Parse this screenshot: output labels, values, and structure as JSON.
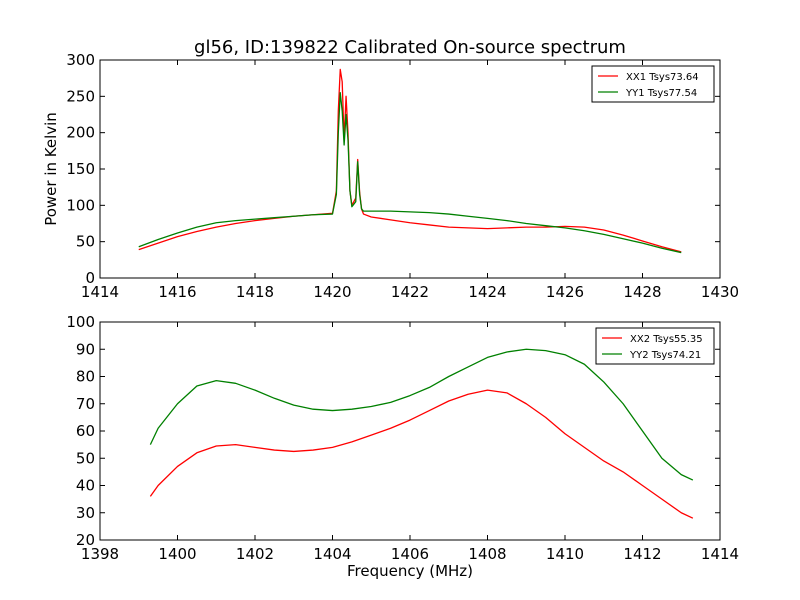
{
  "title": "gl56, ID:139822 Calibrated On-source spectrum",
  "chart_data": [
    {
      "type": "line",
      "ylabel": "Power in Kelvin",
      "xlabel": "",
      "xlim": [
        1414,
        1430
      ],
      "ylim": [
        0,
        300
      ],
      "xticks": [
        1414,
        1416,
        1418,
        1420,
        1422,
        1424,
        1426,
        1428,
        1430
      ],
      "yticks": [
        0,
        50,
        100,
        150,
        200,
        250,
        300
      ],
      "legend_position": "top-right",
      "series": [
        {
          "name": "XX1 Tsys73.64",
          "color": "#ff0000",
          "x": [
            1415.0,
            1415.5,
            1416.0,
            1416.5,
            1417.0,
            1417.5,
            1418.0,
            1418.5,
            1419.0,
            1419.5,
            1420.0,
            1420.1,
            1420.15,
            1420.2,
            1420.25,
            1420.3,
            1420.35,
            1420.4,
            1420.45,
            1420.5,
            1420.6,
            1420.65,
            1420.7,
            1420.75,
            1420.8,
            1421.0,
            1421.5,
            1422.0,
            1422.5,
            1423.0,
            1423.5,
            1424.0,
            1424.5,
            1425.0,
            1425.5,
            1426.0,
            1426.5,
            1427.0,
            1427.5,
            1428.0,
            1428.5,
            1429.0
          ],
          "y": [
            39,
            48,
            57,
            64,
            70,
            75,
            79,
            82,
            85,
            87,
            89,
            120,
            230,
            287,
            270,
            190,
            250,
            200,
            120,
            100,
            110,
            163,
            118,
            95,
            88,
            84,
            80,
            76,
            73,
            70,
            69,
            68,
            69,
            70,
            70,
            71,
            70,
            66,
            59,
            51,
            43,
            36
          ]
        },
        {
          "name": "YY1 Tsys77.54",
          "color": "#008000",
          "x": [
            1415.0,
            1415.5,
            1416.0,
            1416.5,
            1417.0,
            1417.5,
            1418.0,
            1418.5,
            1419.0,
            1419.5,
            1420.0,
            1420.1,
            1420.15,
            1420.2,
            1420.25,
            1420.3,
            1420.35,
            1420.4,
            1420.45,
            1420.5,
            1420.6,
            1420.65,
            1420.7,
            1420.75,
            1420.8,
            1421.0,
            1421.5,
            1422.0,
            1422.5,
            1423.0,
            1423.5,
            1424.0,
            1424.5,
            1425.0,
            1425.5,
            1426.0,
            1426.5,
            1427.0,
            1427.5,
            1428.0,
            1428.5,
            1429.0
          ],
          "y": [
            43,
            53,
            62,
            70,
            76,
            79,
            81,
            83,
            85,
            87,
            88,
            115,
            200,
            255,
            230,
            183,
            225,
            190,
            120,
            98,
            105,
            160,
            115,
            95,
            92,
            92,
            92,
            91,
            90,
            88,
            85,
            82,
            79,
            75,
            72,
            69,
            65,
            60,
            54,
            48,
            41,
            35
          ]
        }
      ]
    },
    {
      "type": "line",
      "ylabel": "",
      "xlabel": "Frequency (MHz)",
      "xlim": [
        1398,
        1414
      ],
      "ylim": [
        20,
        100
      ],
      "xticks": [
        1398,
        1400,
        1402,
        1404,
        1406,
        1408,
        1410,
        1412,
        1414
      ],
      "yticks": [
        20,
        30,
        40,
        50,
        60,
        70,
        80,
        90,
        100
      ],
      "legend_position": "top-right",
      "series": [
        {
          "name": "XX2 Tsys55.35",
          "color": "#ff0000",
          "x": [
            1399.3,
            1399.5,
            1400.0,
            1400.5,
            1401.0,
            1401.5,
            1402.0,
            1402.5,
            1403.0,
            1403.5,
            1404.0,
            1404.5,
            1405.0,
            1405.5,
            1406.0,
            1406.5,
            1407.0,
            1407.5,
            1408.0,
            1408.5,
            1409.0,
            1409.5,
            1410.0,
            1410.5,
            1411.0,
            1411.5,
            1412.0,
            1412.5,
            1413.0,
            1413.3
          ],
          "y": [
            36,
            40,
            47,
            52,
            54.5,
            55,
            54,
            53,
            52.5,
            53,
            54,
            56,
            58.5,
            61,
            64,
            67.5,
            71,
            73.5,
            75,
            74,
            70,
            65,
            59,
            54,
            49,
            45,
            40,
            35,
            30,
            28
          ]
        },
        {
          "name": "YY2 Tsys74.21",
          "color": "#008000",
          "x": [
            1399.3,
            1399.5,
            1400.0,
            1400.5,
            1401.0,
            1401.5,
            1402.0,
            1402.5,
            1403.0,
            1403.5,
            1404.0,
            1404.5,
            1405.0,
            1405.5,
            1406.0,
            1406.5,
            1407.0,
            1407.5,
            1408.0,
            1408.5,
            1409.0,
            1409.5,
            1410.0,
            1410.5,
            1411.0,
            1411.5,
            1412.0,
            1412.5,
            1413.0,
            1413.3
          ],
          "y": [
            55,
            61,
            70,
            76.5,
            78.5,
            77.5,
            75,
            72,
            69.5,
            68,
            67.5,
            68,
            69,
            70.5,
            73,
            76,
            80,
            83.5,
            87,
            89,
            90,
            89.5,
            88,
            84.5,
            78,
            70,
            60,
            50,
            44,
            42
          ]
        }
      ]
    }
  ]
}
